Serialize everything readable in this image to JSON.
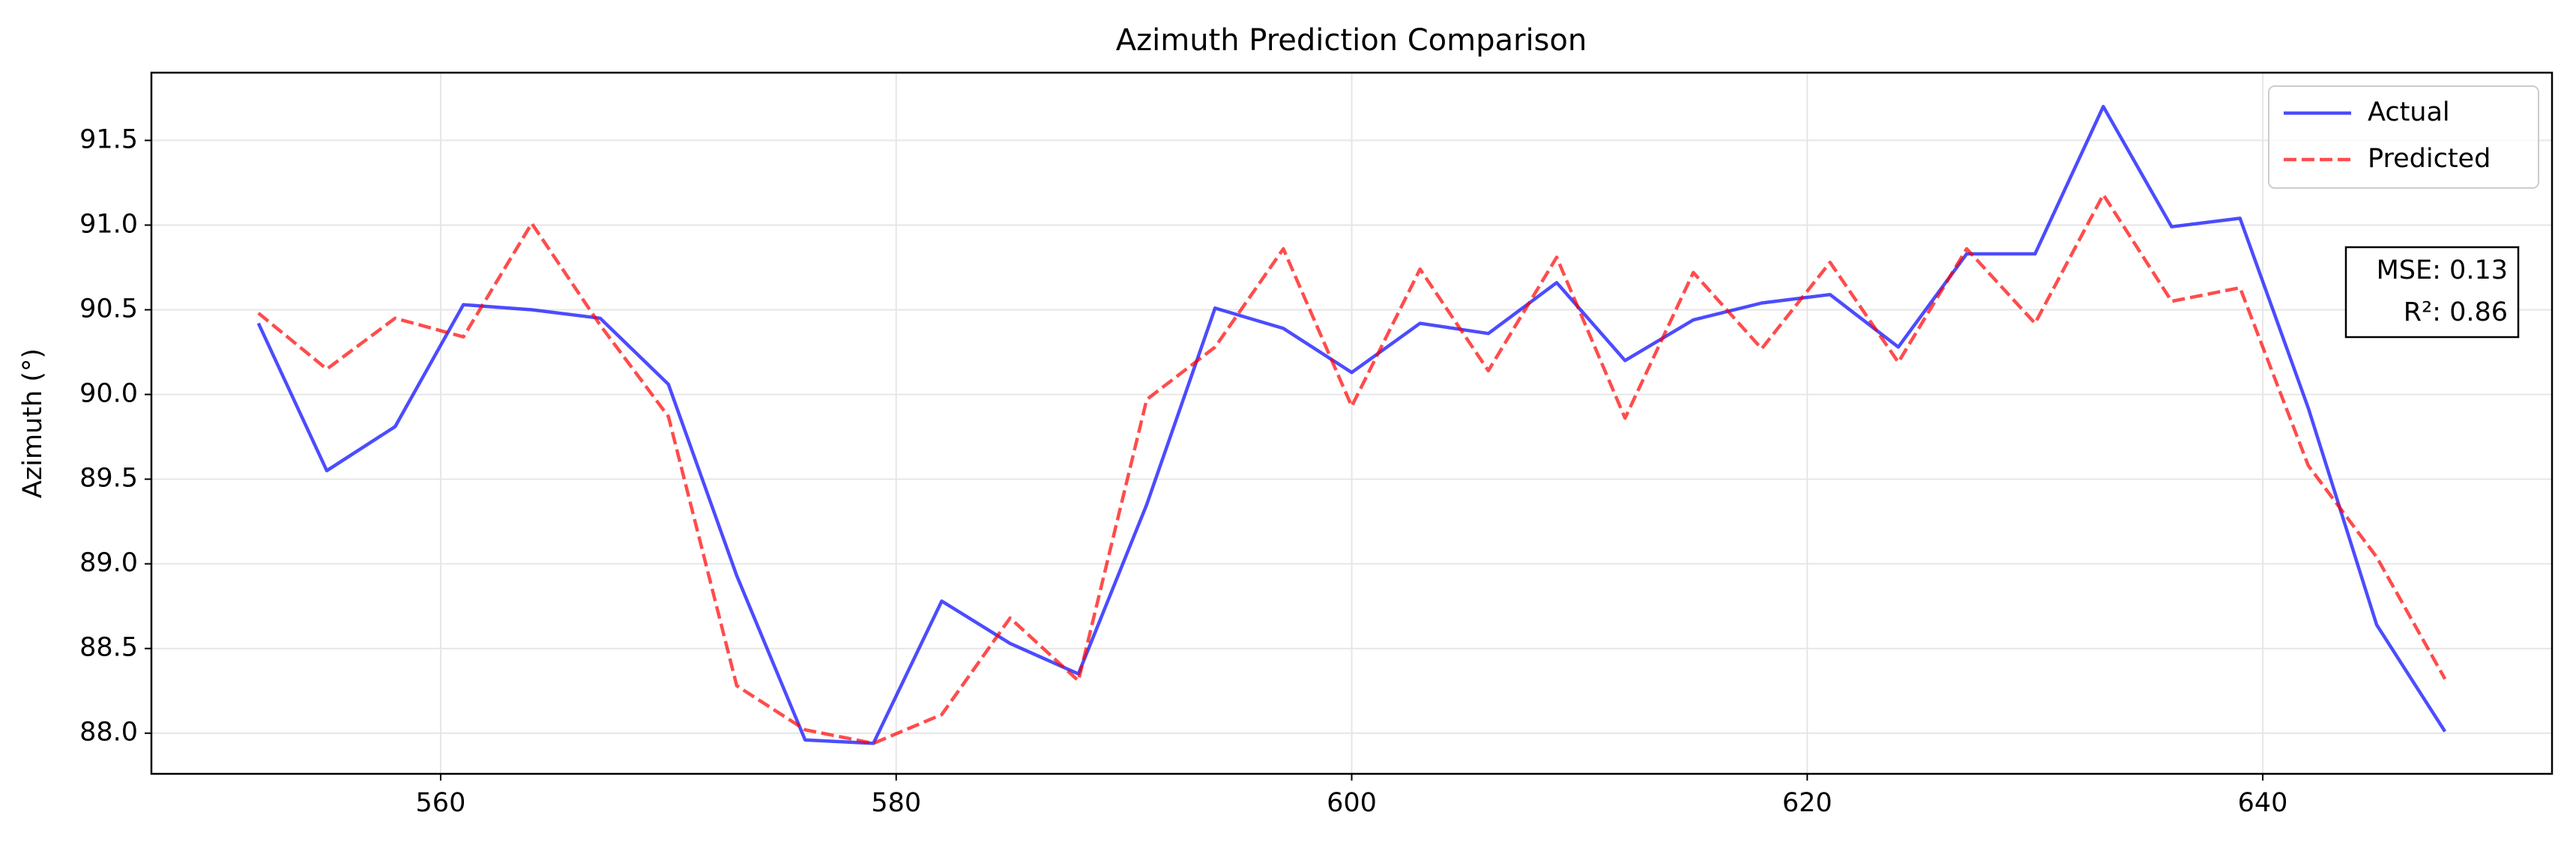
{
  "chart_data": {
    "type": "line",
    "title": "Azimuth Prediction Comparison",
    "y_label": "Azimuth (°)",
    "x": [
      552,
      555,
      558,
      561,
      564,
      567,
      570,
      573,
      576,
      579,
      582,
      585,
      588,
      591,
      594,
      597,
      600,
      603,
      606,
      609,
      612,
      615,
      618,
      621,
      624,
      627,
      630,
      633,
      636,
      639,
      642,
      645,
      648
    ],
    "series": [
      {
        "name": "Actual",
        "color": "#0000ff",
        "dash": false,
        "values": [
          90.42,
          89.55,
          89.81,
          90.53,
          90.5,
          90.45,
          90.06,
          88.93,
          87.96,
          87.94,
          88.78,
          88.53,
          88.35,
          89.35,
          90.51,
          90.39,
          90.13,
          90.42,
          90.36,
          90.66,
          90.2,
          90.44,
          90.54,
          90.59,
          90.28,
          90.83,
          90.83,
          91.7,
          90.99,
          91.04,
          89.92,
          88.64,
          88.01
        ]
      },
      {
        "name": "Predicted",
        "color": "#ff0000",
        "dash": true,
        "values": [
          90.48,
          90.15,
          90.45,
          90.34,
          91.01,
          90.41,
          89.87,
          88.28,
          88.02,
          87.94,
          88.11,
          88.68,
          88.31,
          89.97,
          90.28,
          90.86,
          89.93,
          90.74,
          90.14,
          90.81,
          89.86,
          90.72,
          90.27,
          90.78,
          90.19,
          90.86,
          90.42,
          91.18,
          90.55,
          90.63,
          89.58,
          89.04,
          88.32
        ]
      }
    ],
    "xlim": [
      547.3,
      652.7
    ],
    "ylim": [
      87.76,
      91.9
    ],
    "xticks": [
      560,
      580,
      600,
      620,
      640
    ],
    "yticks": [
      {
        "value": 88.0,
        "label": "88.0"
      },
      88.5,
      {
        "value": 89.0,
        "label": "89.0"
      },
      89.5,
      {
        "value": 90.0,
        "label": "90.0"
      },
      90.5,
      {
        "value": 91.0,
        "label": "91.0"
      },
      91.5
    ],
    "grid": true,
    "legend": "upper right",
    "annotations": [
      "MSE: 0.13",
      "R²: 0.86"
    ]
  }
}
